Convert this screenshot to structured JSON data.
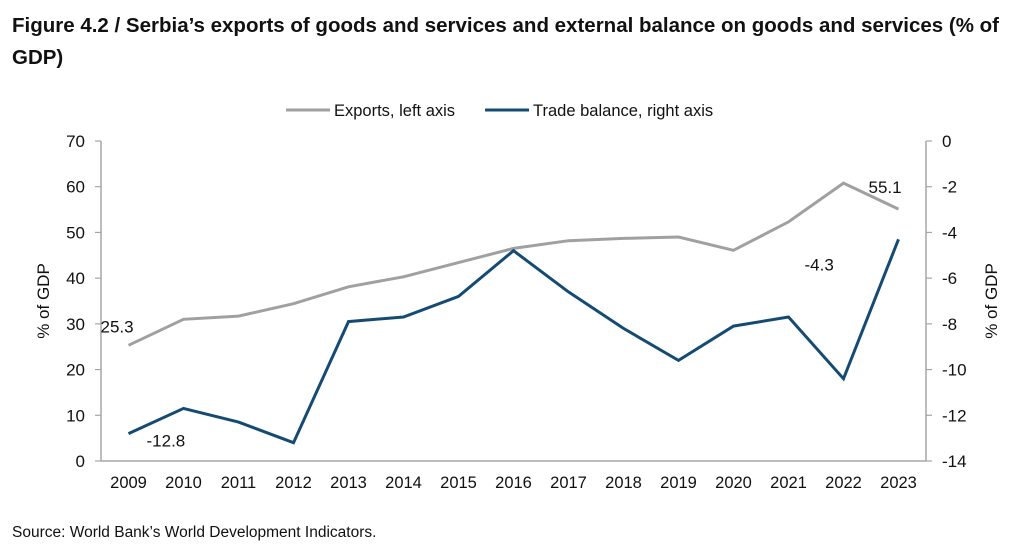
{
  "title": "Figure 4.2 / Serbia’s exports of goods and services and external balance on goods and services (% of GDP)",
  "source": "Source: World Bank’s World Development Indicators.",
  "chart_data": {
    "type": "line",
    "title": "Figure 4.2 / Serbia’s exports of goods and services and external balance on goods and services (% of GDP)",
    "x": [
      "2009",
      "2010",
      "2011",
      "2012",
      "2013",
      "2014",
      "2015",
      "2016",
      "2017",
      "2018",
      "2019",
      "2020",
      "2021",
      "2022",
      "2023"
    ],
    "xlabel": "",
    "y_left": {
      "label": "% of GDP",
      "range": [
        0,
        70
      ],
      "ticks": [
        0,
        10,
        20,
        30,
        40,
        50,
        60,
        70
      ]
    },
    "y_right": {
      "label": "% of GDP",
      "range": [
        -14,
        0
      ],
      "ticks": [
        -14,
        -12,
        -10,
        -8,
        -6,
        -4,
        -2,
        0
      ]
    },
    "grid": false,
    "legend_position": "top-center",
    "series": [
      {
        "name": "Exports, left axis",
        "axis": "left",
        "color": "#a0a0a0",
        "values": [
          25.3,
          31.0,
          31.7,
          34.4,
          38.1,
          40.3,
          43.4,
          46.5,
          48.2,
          48.7,
          49.0,
          46.1,
          52.3,
          60.8,
          55.1
        ]
      },
      {
        "name": "Trade balance, right axis",
        "axis": "right",
        "color": "#154b73",
        "values": [
          -12.8,
          -11.7,
          -12.3,
          -13.2,
          -7.9,
          -7.7,
          -6.8,
          -4.8,
          -6.6,
          -8.2,
          -9.6,
          -8.1,
          -7.7,
          -10.4,
          -4.3
        ]
      }
    ],
    "annotations": [
      {
        "series": "Exports, left axis",
        "x": "2009",
        "text": "25.3"
      },
      {
        "series": "Exports, left axis",
        "x": "2023",
        "text": "55.1"
      },
      {
        "series": "Trade balance, right axis",
        "x": "2009",
        "text": "-12.8"
      },
      {
        "series": "Trade balance, right axis",
        "x": "2023",
        "text": "-4.3"
      }
    ]
  }
}
